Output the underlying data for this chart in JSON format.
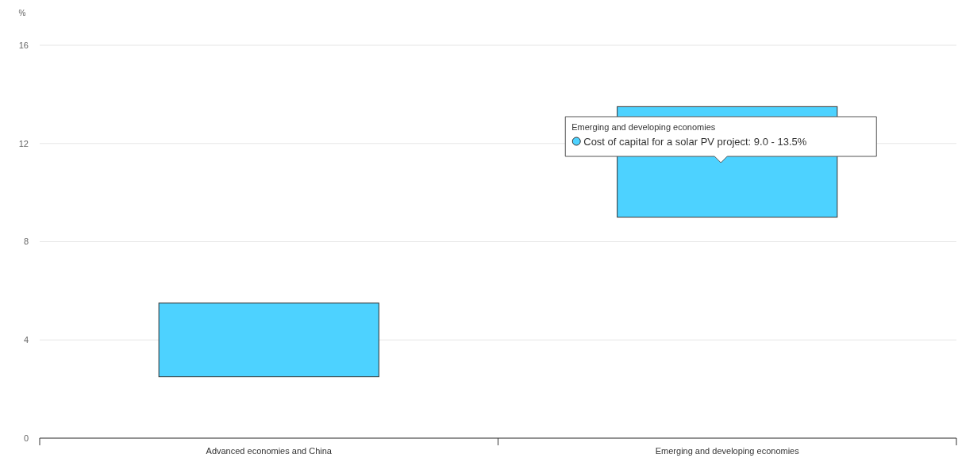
{
  "chart_data": {
    "type": "bar",
    "ylabel": "%",
    "categories": [
      "Advanced economies and China",
      "Emerging and developing economies"
    ],
    "values": [
      3.0,
      4.5
    ],
    "base": [
      2.5,
      9.0
    ],
    "color": "#4dd2ff",
    "ylim": [
      0,
      16
    ],
    "yticks": [
      0,
      4,
      8,
      12,
      16
    ],
    "grid": "y",
    "annotations": [
      "Emerging and developing economies",
      "Cost of capital for a solar PV project: 9.0 - 13.5%"
    ]
  }
}
